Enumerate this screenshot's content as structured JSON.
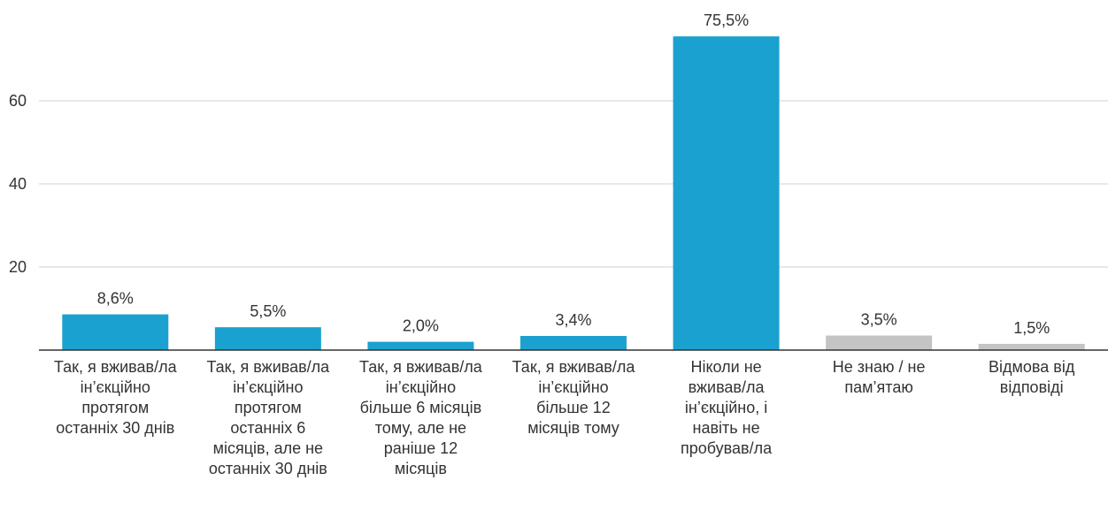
{
  "chart_data": {
    "type": "bar",
    "categories": [
      "Так, я вживав/ла ін’єкційно протягом останніх 30 днів",
      "Так, я вживав/ла ін’єкційно протягом останніх 6 місяців, але не останніх 30 днів",
      "Так, я вживав/ла ін’єкційно більше 6 місяців тому, але не раніше 12 місяців",
      "Так, я вживав/ла ін’єкційно більше 12 місяців тому",
      "Ніколи не вживав/ла ін’єкційно, і навіть не пробував/ла",
      "Не знаю / не пам’ятаю",
      "Відмова від відповіді"
    ],
    "values": [
      8.6,
      5.5,
      2.0,
      3.4,
      75.5,
      3.5,
      1.5
    ],
    "value_labels": [
      "8,6%",
      "5,5%",
      "2,0%",
      "3,4%",
      "75,5%",
      "3,5%",
      "1,5%"
    ],
    "colors": [
      "#1ba1cf",
      "#1ba1cf",
      "#1ba1cf",
      "#1ba1cf",
      "#1ba1cf",
      "#c4c4c4",
      "#c4c4c4"
    ],
    "ylim": [
      0,
      80
    ],
    "yticks": [
      20,
      40,
      60
    ],
    "grid": true
  }
}
